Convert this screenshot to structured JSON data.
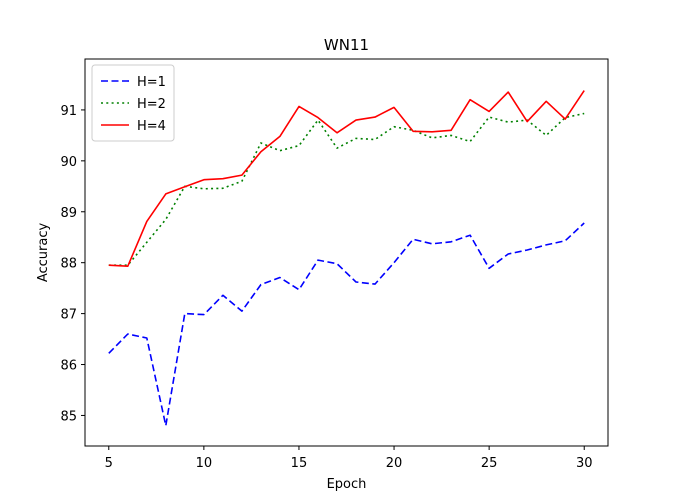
{
  "chart_data": {
    "type": "line",
    "title": "WN11",
    "xlabel": "Epoch",
    "ylabel": "Accuracy",
    "xlim": [
      3.75,
      31.25
    ],
    "ylim": [
      84.4,
      92.0
    ],
    "xticks": [
      5,
      10,
      15,
      20,
      25,
      30
    ],
    "yticks": [
      85,
      86,
      87,
      88,
      89,
      90,
      91
    ],
    "grid": false,
    "legend_position": "top-left",
    "x": [
      5,
      6,
      7,
      8,
      9,
      10,
      11,
      12,
      13,
      14,
      15,
      16,
      17,
      18,
      19,
      20,
      21,
      22,
      23,
      24,
      25,
      26,
      27,
      28,
      29,
      30
    ],
    "series": [
      {
        "name": "H=1",
        "color": "#0000ff",
        "style": "dashed",
        "values": [
          86.22,
          86.6,
          86.52,
          84.8,
          87.0,
          86.98,
          87.36,
          87.05,
          87.57,
          87.71,
          87.47,
          88.05,
          87.98,
          87.62,
          87.58,
          88.0,
          88.46,
          88.37,
          88.41,
          88.54,
          87.89,
          88.17,
          88.25,
          88.35,
          88.43,
          88.78
        ]
      },
      {
        "name": "H=2",
        "color": "#008000",
        "style": "dotted",
        "values": [
          87.95,
          87.95,
          88.4,
          88.85,
          89.5,
          89.45,
          89.46,
          89.6,
          90.35,
          90.2,
          90.3,
          90.8,
          90.25,
          90.44,
          90.42,
          90.67,
          90.6,
          90.45,
          90.5,
          90.38,
          90.86,
          90.76,
          90.8,
          90.5,
          90.85,
          90.93
        ]
      },
      {
        "name": "H=4",
        "color": "#ff0000",
        "style": "solid",
        "values": [
          87.95,
          87.93,
          88.81,
          89.35,
          89.49,
          89.63,
          89.65,
          89.72,
          90.18,
          90.48,
          91.07,
          90.85,
          90.55,
          90.8,
          90.86,
          91.05,
          90.58,
          90.57,
          90.6,
          91.2,
          90.97,
          91.35,
          90.77,
          91.17,
          90.82,
          91.38
        ]
      }
    ]
  }
}
